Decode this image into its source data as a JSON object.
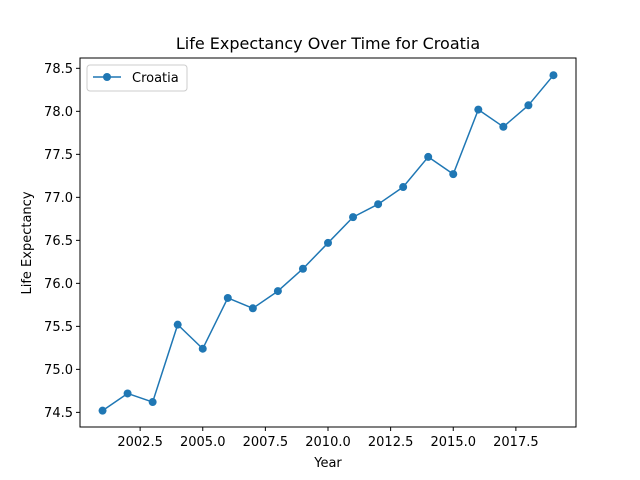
{
  "chart_data": {
    "type": "line",
    "title": "Life Expectancy Over Time for Croatia",
    "xlabel": "Year",
    "ylabel": "Life Expectancy",
    "xlim": [
      2000.1,
      2019.9
    ],
    "ylim": [
      74.33,
      78.62
    ],
    "xticks": [
      2002.5,
      2005.0,
      2007.5,
      2010.0,
      2012.5,
      2015.0,
      2017.5
    ],
    "xtick_labels": [
      "2002.5",
      "2005.0",
      "2007.5",
      "2010.0",
      "2012.5",
      "2015.0",
      "2017.5"
    ],
    "yticks": [
      74.5,
      75.0,
      75.5,
      76.0,
      76.5,
      77.0,
      77.5,
      78.0,
      78.5
    ],
    "ytick_labels": [
      "74.5",
      "75.0",
      "75.5",
      "76.0",
      "76.5",
      "77.0",
      "77.5",
      "78.0",
      "78.5"
    ],
    "grid": false,
    "legend": "upper-left",
    "series": [
      {
        "name": "Croatia",
        "color": "#1f77b4",
        "marker": "circle",
        "x": [
          2001,
          2002,
          2003,
          2004,
          2005,
          2006,
          2007,
          2008,
          2009,
          2010,
          2011,
          2012,
          2013,
          2014,
          2015,
          2016,
          2017,
          2018,
          2019
        ],
        "y": [
          74.52,
          74.72,
          74.62,
          75.52,
          75.24,
          75.83,
          75.71,
          75.91,
          76.17,
          76.47,
          76.77,
          76.92,
          77.12,
          77.47,
          77.27,
          78.02,
          77.82,
          78.07,
          78.42
        ]
      }
    ]
  }
}
